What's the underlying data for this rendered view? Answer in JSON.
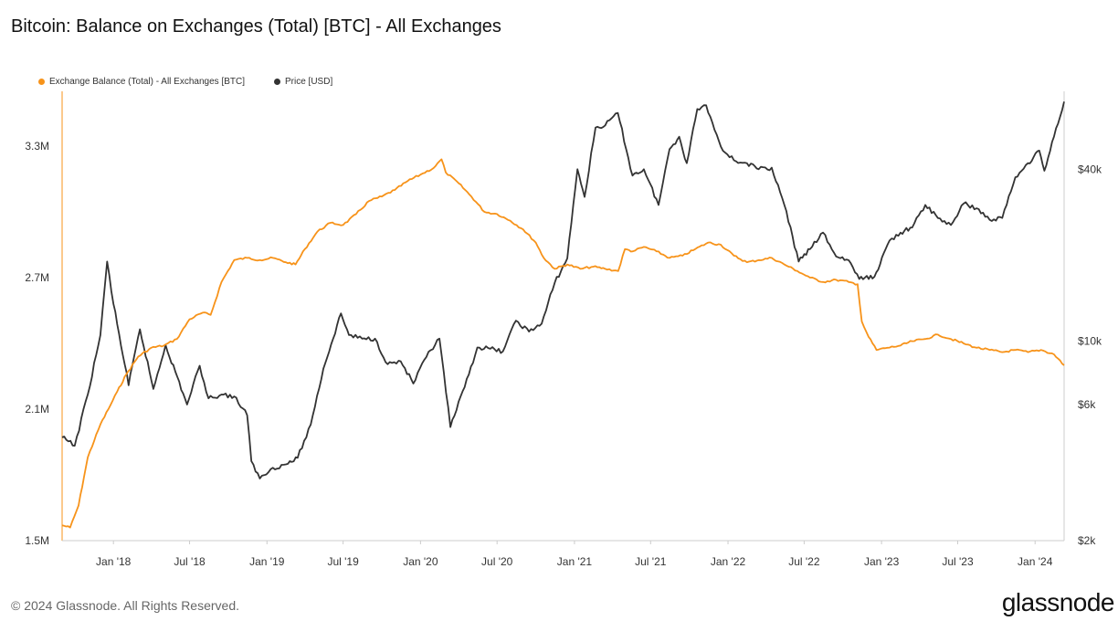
{
  "title": "Bitcoin: Balance on Exchanges (Total) [BTC] - All Exchanges",
  "footer": "© 2024 Glassnode. All Rights Reserved.",
  "logo": "glassnode",
  "legend": [
    {
      "label": "Exchange Balance (Total) - All Exchanges [BTC]",
      "color": "#f7931a"
    },
    {
      "label": "Price [USD]",
      "color": "#333333"
    }
  ],
  "chart_data": {
    "type": "line",
    "title": "Bitcoin: Balance on Exchanges (Total) [BTC] - All Exchanges",
    "x_ticks": [
      "Jan '18",
      "Jul '18",
      "Jan '19",
      "Jul '19",
      "Jan '20",
      "Jul '20",
      "Jan '21",
      "Jul '21",
      "Jan '22",
      "Jul '22",
      "Jan '23",
      "Jul '23",
      "Jan '24"
    ],
    "x_range": [
      "2017-09-01",
      "2024-03-10"
    ],
    "y_left": {
      "ticks": [
        "1.5M",
        "2.1M",
        "2.7M",
        "3.3M"
      ],
      "values": [
        1500000,
        2100000,
        2700000,
        3300000
      ],
      "ylim": [
        1500000,
        3550000
      ]
    },
    "y_right": {
      "scale": "log",
      "ticks": [
        "$2k",
        "$6k",
        "$10k",
        "$40k"
      ],
      "values": [
        2000,
        6000,
        10000,
        40000
      ],
      "ylim": [
        2000,
        75000
      ]
    },
    "grid": false,
    "legend_position": "top-left",
    "series": [
      {
        "name": "Exchange Balance (Total) - All Exchanges [BTC]",
        "axis": "left",
        "color": "#f7931a",
        "points": [
          [
            "2017-09-01",
            1570000
          ],
          [
            "2017-09-20",
            1560000
          ],
          [
            "2017-10-10",
            1660000
          ],
          [
            "2017-11-01",
            1880000
          ],
          [
            "2017-12-01",
            2030000
          ],
          [
            "2017-12-20",
            2100000
          ],
          [
            "2018-01-10",
            2180000
          ],
          [
            "2018-02-01",
            2260000
          ],
          [
            "2018-03-01",
            2340000
          ],
          [
            "2018-04-01",
            2380000
          ],
          [
            "2018-05-01",
            2390000
          ],
          [
            "2018-06-01",
            2420000
          ],
          [
            "2018-07-01",
            2510000
          ],
          [
            "2018-08-01",
            2540000
          ],
          [
            "2018-08-20",
            2530000
          ],
          [
            "2018-09-15",
            2680000
          ],
          [
            "2018-10-15",
            2780000
          ],
          [
            "2018-11-15",
            2790000
          ],
          [
            "2018-12-15",
            2780000
          ],
          [
            "2019-01-15",
            2790000
          ],
          [
            "2019-02-15",
            2770000
          ],
          [
            "2019-03-10",
            2760000
          ],
          [
            "2019-04-01",
            2830000
          ],
          [
            "2019-05-01",
            2910000
          ],
          [
            "2019-06-01",
            2950000
          ],
          [
            "2019-07-01",
            2940000
          ],
          [
            "2019-08-01",
            2990000
          ],
          [
            "2019-09-01",
            3050000
          ],
          [
            "2019-10-01",
            3070000
          ],
          [
            "2019-11-01",
            3100000
          ],
          [
            "2019-12-01",
            3140000
          ],
          [
            "2020-01-01",
            3170000
          ],
          [
            "2020-02-01",
            3200000
          ],
          [
            "2020-02-20",
            3240000
          ],
          [
            "2020-03-01",
            3180000
          ],
          [
            "2020-04-01",
            3130000
          ],
          [
            "2020-05-01",
            3070000
          ],
          [
            "2020-06-01",
            3000000
          ],
          [
            "2020-07-01",
            2990000
          ],
          [
            "2020-08-01",
            2960000
          ],
          [
            "2020-09-01",
            2920000
          ],
          [
            "2020-10-01",
            2860000
          ],
          [
            "2020-10-20",
            2790000
          ],
          [
            "2020-11-15",
            2740000
          ],
          [
            "2020-12-15",
            2760000
          ],
          [
            "2021-01-15",
            2740000
          ],
          [
            "2021-02-15",
            2750000
          ],
          [
            "2021-03-15",
            2740000
          ],
          [
            "2021-04-15",
            2730000
          ],
          [
            "2021-05-01",
            2830000
          ],
          [
            "2021-05-20",
            2820000
          ],
          [
            "2021-06-15",
            2840000
          ],
          [
            "2021-07-15",
            2820000
          ],
          [
            "2021-08-15",
            2790000
          ],
          [
            "2021-09-15",
            2800000
          ],
          [
            "2021-10-15",
            2830000
          ],
          [
            "2021-11-15",
            2860000
          ],
          [
            "2021-12-15",
            2850000
          ],
          [
            "2022-01-15",
            2800000
          ],
          [
            "2022-02-15",
            2770000
          ],
          [
            "2022-03-15",
            2780000
          ],
          [
            "2022-04-15",
            2790000
          ],
          [
            "2022-05-15",
            2760000
          ],
          [
            "2022-06-15",
            2730000
          ],
          [
            "2022-07-15",
            2700000
          ],
          [
            "2022-08-15",
            2680000
          ],
          [
            "2022-09-15",
            2690000
          ],
          [
            "2022-10-15",
            2680000
          ],
          [
            "2022-11-05",
            2670000
          ],
          [
            "2022-11-15",
            2500000
          ],
          [
            "2022-12-01",
            2430000
          ],
          [
            "2022-12-20",
            2370000
          ],
          [
            "2023-01-15",
            2380000
          ],
          [
            "2023-02-15",
            2390000
          ],
          [
            "2023-03-15",
            2410000
          ],
          [
            "2023-04-15",
            2420000
          ],
          [
            "2023-05-15",
            2440000
          ],
          [
            "2023-06-15",
            2420000
          ],
          [
            "2023-07-15",
            2400000
          ],
          [
            "2023-08-15",
            2380000
          ],
          [
            "2023-09-15",
            2370000
          ],
          [
            "2023-10-15",
            2360000
          ],
          [
            "2023-11-15",
            2370000
          ],
          [
            "2023-12-15",
            2360000
          ],
          [
            "2024-01-15",
            2370000
          ],
          [
            "2024-02-15",
            2350000
          ],
          [
            "2024-03-10",
            2300000
          ]
        ]
      },
      {
        "name": "Price [USD]",
        "axis": "right",
        "color": "#333333",
        "points": [
          [
            "2017-09-01",
            4600
          ],
          [
            "2017-10-01",
            4300
          ],
          [
            "2017-11-01",
            6500
          ],
          [
            "2017-12-01",
            10500
          ],
          [
            "2017-12-17",
            19000
          ],
          [
            "2018-01-01",
            13500
          ],
          [
            "2018-02-06",
            7000
          ],
          [
            "2018-03-05",
            11000
          ],
          [
            "2018-04-06",
            6800
          ],
          [
            "2018-05-05",
            9700
          ],
          [
            "2018-06-25",
            6000
          ],
          [
            "2018-07-25",
            8200
          ],
          [
            "2018-08-15",
            6300
          ],
          [
            "2018-09-15",
            6500
          ],
          [
            "2018-10-15",
            6400
          ],
          [
            "2018-11-15",
            5500
          ],
          [
            "2018-11-25",
            3800
          ],
          [
            "2018-12-15",
            3300
          ],
          [
            "2019-01-15",
            3600
          ],
          [
            "2019-02-15",
            3700
          ],
          [
            "2019-03-15",
            3900
          ],
          [
            "2019-04-15",
            5100
          ],
          [
            "2019-05-15",
            8000
          ],
          [
            "2019-06-26",
            12500
          ],
          [
            "2019-07-15",
            10500
          ],
          [
            "2019-08-15",
            10200
          ],
          [
            "2019-09-15",
            10200
          ],
          [
            "2019-10-15",
            8300
          ],
          [
            "2019-11-15",
            8500
          ],
          [
            "2019-12-15",
            7100
          ],
          [
            "2020-01-15",
            8800
          ],
          [
            "2020-02-15",
            10200
          ],
          [
            "2020-03-12",
            5000
          ],
          [
            "2020-04-15",
            6900
          ],
          [
            "2020-05-15",
            9500
          ],
          [
            "2020-06-15",
            9400
          ],
          [
            "2020-07-15",
            9200
          ],
          [
            "2020-08-15",
            11800
          ],
          [
            "2020-09-15",
            10800
          ],
          [
            "2020-10-15",
            11500
          ],
          [
            "2020-11-15",
            16000
          ],
          [
            "2020-12-15",
            19500
          ],
          [
            "2021-01-08",
            40000
          ],
          [
            "2021-01-25",
            32000
          ],
          [
            "2021-02-20",
            56000
          ],
          [
            "2021-03-15",
            57000
          ],
          [
            "2021-04-14",
            63000
          ],
          [
            "2021-05-19",
            38000
          ],
          [
            "2021-06-15",
            40000
          ],
          [
            "2021-07-20",
            30000
          ],
          [
            "2021-08-15",
            47000
          ],
          [
            "2021-09-07",
            52000
          ],
          [
            "2021-09-25",
            42000
          ],
          [
            "2021-10-20",
            65000
          ],
          [
            "2021-11-10",
            67000
          ],
          [
            "2021-12-15",
            48000
          ],
          [
            "2022-01-15",
            43000
          ],
          [
            "2022-02-15",
            42000
          ],
          [
            "2022-03-15",
            40000
          ],
          [
            "2022-04-15",
            40500
          ],
          [
            "2022-05-15",
            30000
          ],
          [
            "2022-06-18",
            19000
          ],
          [
            "2022-07-15",
            21000
          ],
          [
            "2022-08-15",
            24000
          ],
          [
            "2022-09-15",
            19800
          ],
          [
            "2022-10-15",
            19200
          ],
          [
            "2022-11-09",
            16500
          ],
          [
            "2022-12-15",
            16800
          ],
          [
            "2023-01-20",
            22500
          ],
          [
            "2023-02-15",
            24000
          ],
          [
            "2023-03-15",
            25000
          ],
          [
            "2023-04-15",
            30000
          ],
          [
            "2023-05-15",
            27000
          ],
          [
            "2023-06-15",
            25500
          ],
          [
            "2023-07-15",
            30300
          ],
          [
            "2023-08-15",
            29200
          ],
          [
            "2023-09-15",
            26600
          ],
          [
            "2023-10-15",
            27000
          ],
          [
            "2023-11-15",
            37500
          ],
          [
            "2023-12-15",
            42000
          ],
          [
            "2024-01-11",
            46500
          ],
          [
            "2024-01-23",
            39500
          ],
          [
            "2024-02-15",
            52000
          ],
          [
            "2024-03-10",
            69000
          ]
        ]
      }
    ]
  }
}
